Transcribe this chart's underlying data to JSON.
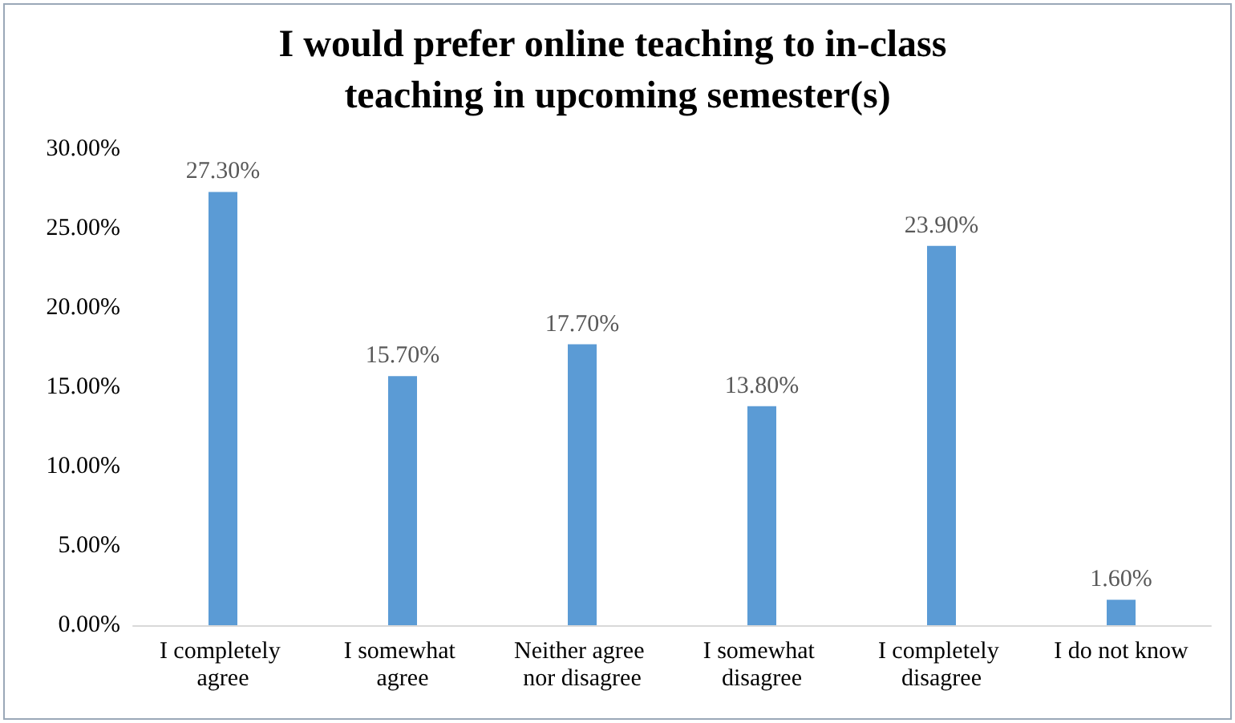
{
  "chart_data": {
    "type": "bar",
    "title": "I would prefer online teaching to in-class teaching in upcoming semester(s)",
    "categories": [
      "I completely agree",
      "I somewhat agree",
      "Neither agree nor disagree",
      "I somewhat disagree",
      "I completely disagree",
      "I do not know"
    ],
    "values": [
      27.3,
      15.7,
      17.7,
      13.8,
      23.9,
      1.6
    ],
    "value_labels": [
      "27.30%",
      "15.70%",
      "17.70%",
      "13.80%",
      "23.90%",
      "1.60%"
    ],
    "color": "#5b9bd5",
    "ylim": [
      0,
      30
    ],
    "yticks": [
      {
        "value": 0,
        "label": "0.00%"
      },
      {
        "value": 5,
        "label": "5.00%"
      },
      {
        "value": 10,
        "label": "10.00%"
      },
      {
        "value": 15,
        "label": "15.00%"
      },
      {
        "value": 20,
        "label": "20.00%"
      },
      {
        "value": 25,
        "label": "25.00%"
      },
      {
        "value": 30,
        "label": "30.00%"
      }
    ],
    "grid": false
  }
}
